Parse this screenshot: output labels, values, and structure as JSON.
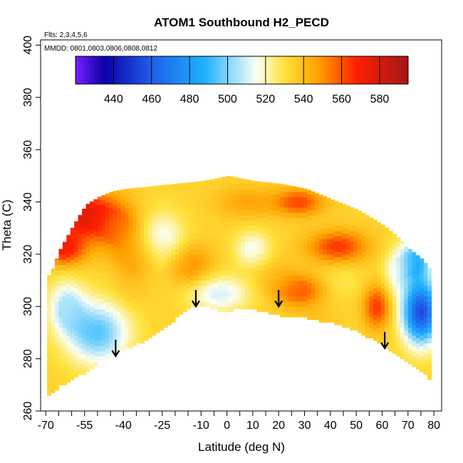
{
  "chart_data": {
    "type": "heatmap",
    "title": "ATOM1 Southbound H2_PECD",
    "flights_label": "Flts: 2,3,4,5,6",
    "dates_label": "MMDD: 0801,0803,0806,0808,0812",
    "xlabel": "Latitude (deg N)",
    "ylabel": "Theta (C)",
    "xlim": [
      -72,
      83
    ],
    "ylim": [
      260,
      402
    ],
    "x_ticks": [
      -70,
      -55,
      -40,
      -25,
      -10,
      0,
      10,
      20,
      30,
      40,
      50,
      60,
      70,
      80
    ],
    "x_minor_ticks": [
      -65,
      -60,
      -50,
      -45,
      -35,
      -30,
      -20,
      -15,
      -5,
      5,
      15,
      25,
      35,
      45,
      55,
      65,
      75
    ],
    "y_ticks": [
      260,
      280,
      300,
      320,
      340,
      360,
      380,
      400
    ],
    "colorbar": {
      "vmin": 420,
      "vmax": 595,
      "tick_values": [
        440,
        460,
        480,
        500,
        520,
        540,
        560,
        580
      ],
      "tick_labels": [
        "440",
        "460",
        "480",
        "500",
        "520",
        "540",
        "560",
        "580"
      ],
      "colors": [
        "#7a1fff",
        "#0b00a8",
        "#1f5eea",
        "#1fb2ff",
        "#fafff5",
        "#ffe23c",
        "#ff9f00",
        "#ff1f00",
        "#a01818"
      ],
      "color_stops": [
        420,
        435,
        460,
        488,
        515,
        530,
        548,
        568,
        595
      ]
    },
    "arrows": [
      {
        "lat": -43,
        "theta": 284
      },
      {
        "lat": -12,
        "theta": 303
      },
      {
        "lat": 20,
        "theta": 303
      },
      {
        "lat": 61,
        "theta": 287
      }
    ],
    "field": {
      "theta_bottom": [
        [
          -69,
          266
        ],
        [
          -65,
          270
        ],
        [
          -60,
          273
        ],
        [
          -55,
          275
        ],
        [
          -50,
          279
        ],
        [
          -45,
          281
        ],
        [
          -40,
          284
        ],
        [
          -35,
          286
        ],
        [
          -30,
          289
        ],
        [
          -25,
          292
        ],
        [
          -20,
          296
        ],
        [
          -15,
          300
        ],
        [
          -10,
          301
        ],
        [
          -5,
          299
        ],
        [
          0,
          298
        ],
        [
          5,
          300
        ],
        [
          10,
          299
        ],
        [
          20,
          297
        ],
        [
          30,
          296
        ],
        [
          40,
          294
        ],
        [
          50,
          291
        ],
        [
          55,
          288
        ],
        [
          60,
          285
        ],
        [
          65,
          282
        ],
        [
          70,
          278
        ],
        [
          75,
          275
        ],
        [
          78,
          272
        ]
      ],
      "theta_top": [
        [
          -69,
          312
        ],
        [
          -65,
          322
        ],
        [
          -60,
          331
        ],
        [
          -55,
          339
        ],
        [
          -50,
          342
        ],
        [
          -45,
          344
        ],
        [
          -40,
          345
        ],
        [
          -30,
          346
        ],
        [
          -20,
          347
        ],
        [
          -10,
          348
        ],
        [
          0,
          350
        ],
        [
          10,
          348
        ],
        [
          20,
          347
        ],
        [
          30,
          345
        ],
        [
          40,
          341
        ],
        [
          45,
          339
        ],
        [
          50,
          337
        ],
        [
          55,
          334
        ],
        [
          60,
          331
        ],
        [
          65,
          327
        ],
        [
          70,
          322
        ],
        [
          75,
          318
        ],
        [
          78,
          314
        ]
      ],
      "features": [
        {
          "lat": -55,
          "theta": 335,
          "value": 578,
          "sx": 12,
          "sy": 9
        },
        {
          "lat": -63,
          "theta": 322,
          "value": 570,
          "sx": 8,
          "sy": 6
        },
        {
          "lat": -42,
          "theta": 330,
          "value": 552,
          "sx": 9,
          "sy": 10
        },
        {
          "lat": -35,
          "theta": 318,
          "value": 548,
          "sx": 8,
          "sy": 8
        },
        {
          "lat": -15,
          "theta": 316,
          "value": 553,
          "sx": 9,
          "sy": 8
        },
        {
          "lat": -25,
          "theta": 325,
          "value": 512,
          "sx": 9,
          "sy": 11
        },
        {
          "lat": -50,
          "theta": 290,
          "value": 495,
          "sx": 12,
          "sy": 12
        },
        {
          "lat": -62,
          "theta": 300,
          "value": 507,
          "sx": 7,
          "sy": 10
        },
        {
          "lat": -38,
          "theta": 305,
          "value": 538,
          "sx": 7,
          "sy": 6
        },
        {
          "lat": -3,
          "theta": 305,
          "value": 510,
          "sx": 12,
          "sy": 7
        },
        {
          "lat": 10,
          "theta": 322,
          "value": 514,
          "sx": 7,
          "sy": 7
        },
        {
          "lat": 28,
          "theta": 340,
          "value": 562,
          "sx": 9,
          "sy": 5
        },
        {
          "lat": 8,
          "theta": 340,
          "value": 546,
          "sx": 12,
          "sy": 6
        },
        {
          "lat": 28,
          "theta": 306,
          "value": 560,
          "sx": 9,
          "sy": 6
        },
        {
          "lat": 18,
          "theta": 312,
          "value": 540,
          "sx": 9,
          "sy": 8
        },
        {
          "lat": 43,
          "theta": 323,
          "value": 565,
          "sx": 11,
          "sy": 6
        },
        {
          "lat": 45,
          "theta": 310,
          "value": 528,
          "sx": 8,
          "sy": 7
        },
        {
          "lat": 58,
          "theta": 300,
          "value": 565,
          "sx": 5,
          "sy": 8
        },
        {
          "lat": 65,
          "theta": 313,
          "value": 518,
          "sx": 5,
          "sy": 9
        },
        {
          "lat": 75,
          "theta": 298,
          "value": 455,
          "sx": 7,
          "sy": 12
        },
        {
          "lat": 73,
          "theta": 318,
          "value": 490,
          "sx": 6,
          "sy": 8
        },
        {
          "lat": 35,
          "theta": 295,
          "value": 538,
          "sx": 8,
          "sy": 5
        }
      ],
      "base_value": 534
    }
  }
}
